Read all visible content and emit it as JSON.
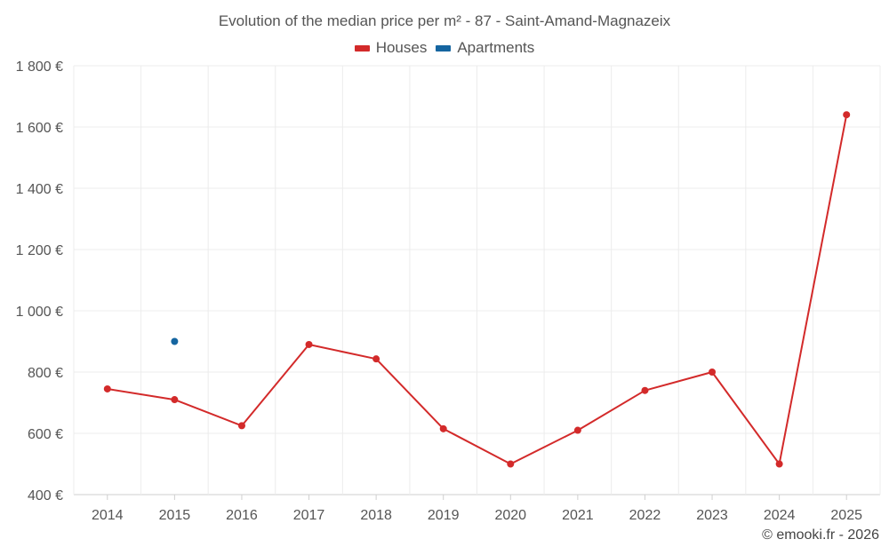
{
  "chart_data": {
    "type": "line",
    "title": "Evolution of the median price per m² - 87 - Saint-Amand-Magnazeix",
    "categories": [
      "2014",
      "2015",
      "2016",
      "2017",
      "2018",
      "2019",
      "2020",
      "2021",
      "2022",
      "2023",
      "2024",
      "2025"
    ],
    "y_ticks": [
      "400 €",
      "600 €",
      "800 €",
      "1 000 €",
      "1 200 €",
      "1 400 €",
      "1 600 €",
      "1 800 €"
    ],
    "ylim": [
      400,
      1800
    ],
    "grid": true,
    "legend_position": "top-center",
    "series": [
      {
        "name": "Houses",
        "color": "#d32a2a",
        "values": [
          745,
          710,
          625,
          890,
          843,
          615,
          500,
          610,
          740,
          800,
          500,
          1640
        ]
      },
      {
        "name": "Apartments",
        "color": "#1565a0",
        "values": [
          null,
          900,
          null,
          null,
          null,
          null,
          null,
          null,
          null,
          null,
          null,
          null
        ]
      }
    ],
    "credit": "© emooki.fr - 2026"
  }
}
